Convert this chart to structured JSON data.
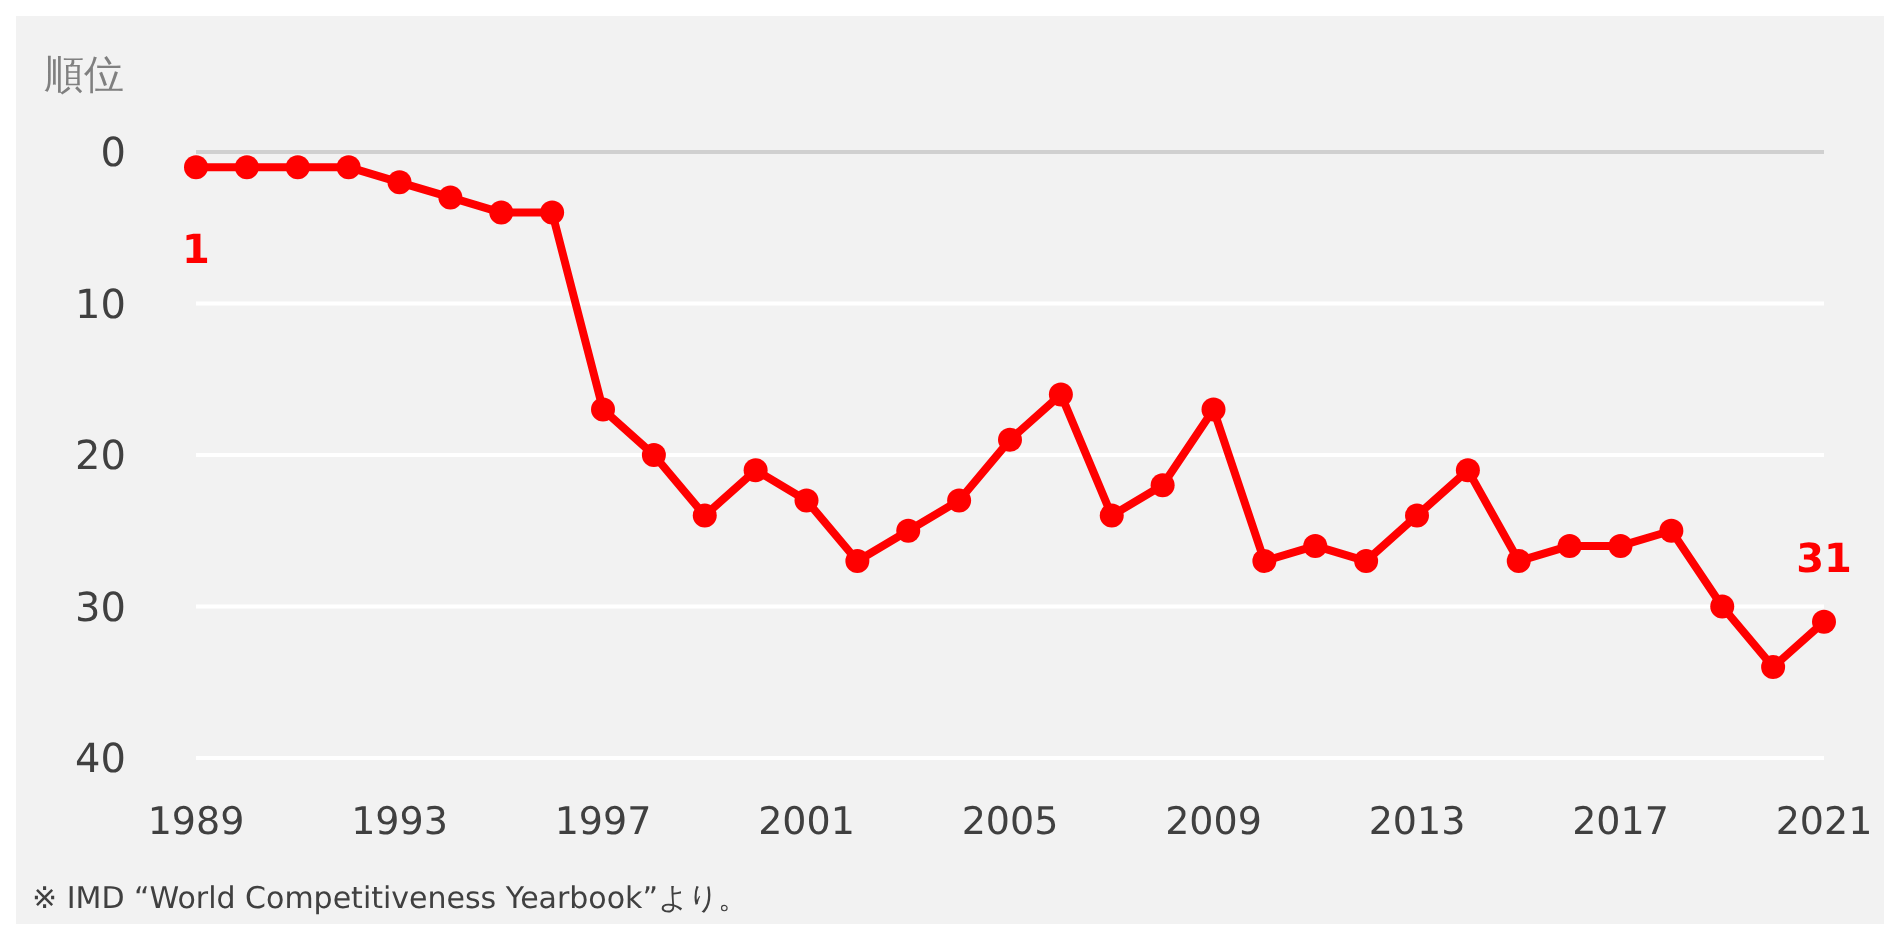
{
  "chart_data": {
    "type": "line",
    "ylabel": "順位",
    "x": [
      1989,
      1990,
      1991,
      1992,
      1993,
      1994,
      1995,
      1996,
      1997,
      1998,
      1999,
      2000,
      2001,
      2002,
      2003,
      2004,
      2005,
      2006,
      2007,
      2008,
      2009,
      2010,
      2011,
      2012,
      2013,
      2014,
      2015,
      2016,
      2017,
      2018,
      2019,
      2020,
      2021
    ],
    "series": [
      {
        "color": "#ff0000",
        "values": [
          1,
          1,
          1,
          1,
          2,
          3,
          4,
          4,
          17,
          20,
          24,
          21,
          23,
          27,
          25,
          23,
          19,
          16,
          24,
          22,
          17,
          27,
          26,
          27,
          24,
          21,
          27,
          26,
          26,
          25,
          30,
          34,
          31
        ],
        "value_labels": [
          "1",
          null,
          null,
          null,
          null,
          null,
          null,
          null,
          null,
          null,
          null,
          null,
          null,
          null,
          null,
          null,
          null,
          null,
          null,
          null,
          null,
          null,
          null,
          null,
          null,
          null,
          null,
          null,
          null,
          null,
          null,
          null,
          "31"
        ]
      }
    ],
    "xlim": [
      1989,
      2021
    ],
    "xticks": [
      1989,
      1993,
      1997,
      2001,
      2005,
      2009,
      2013,
      2017,
      2021
    ],
    "ylim": [
      40,
      0
    ],
    "yticks": [
      0,
      10,
      20,
      30,
      40
    ],
    "grid": "y",
    "marker": "circle",
    "line_style": "solid",
    "annotations": [
      "※ IMD “World Competitiveness Yearbook”より。"
    ]
  }
}
